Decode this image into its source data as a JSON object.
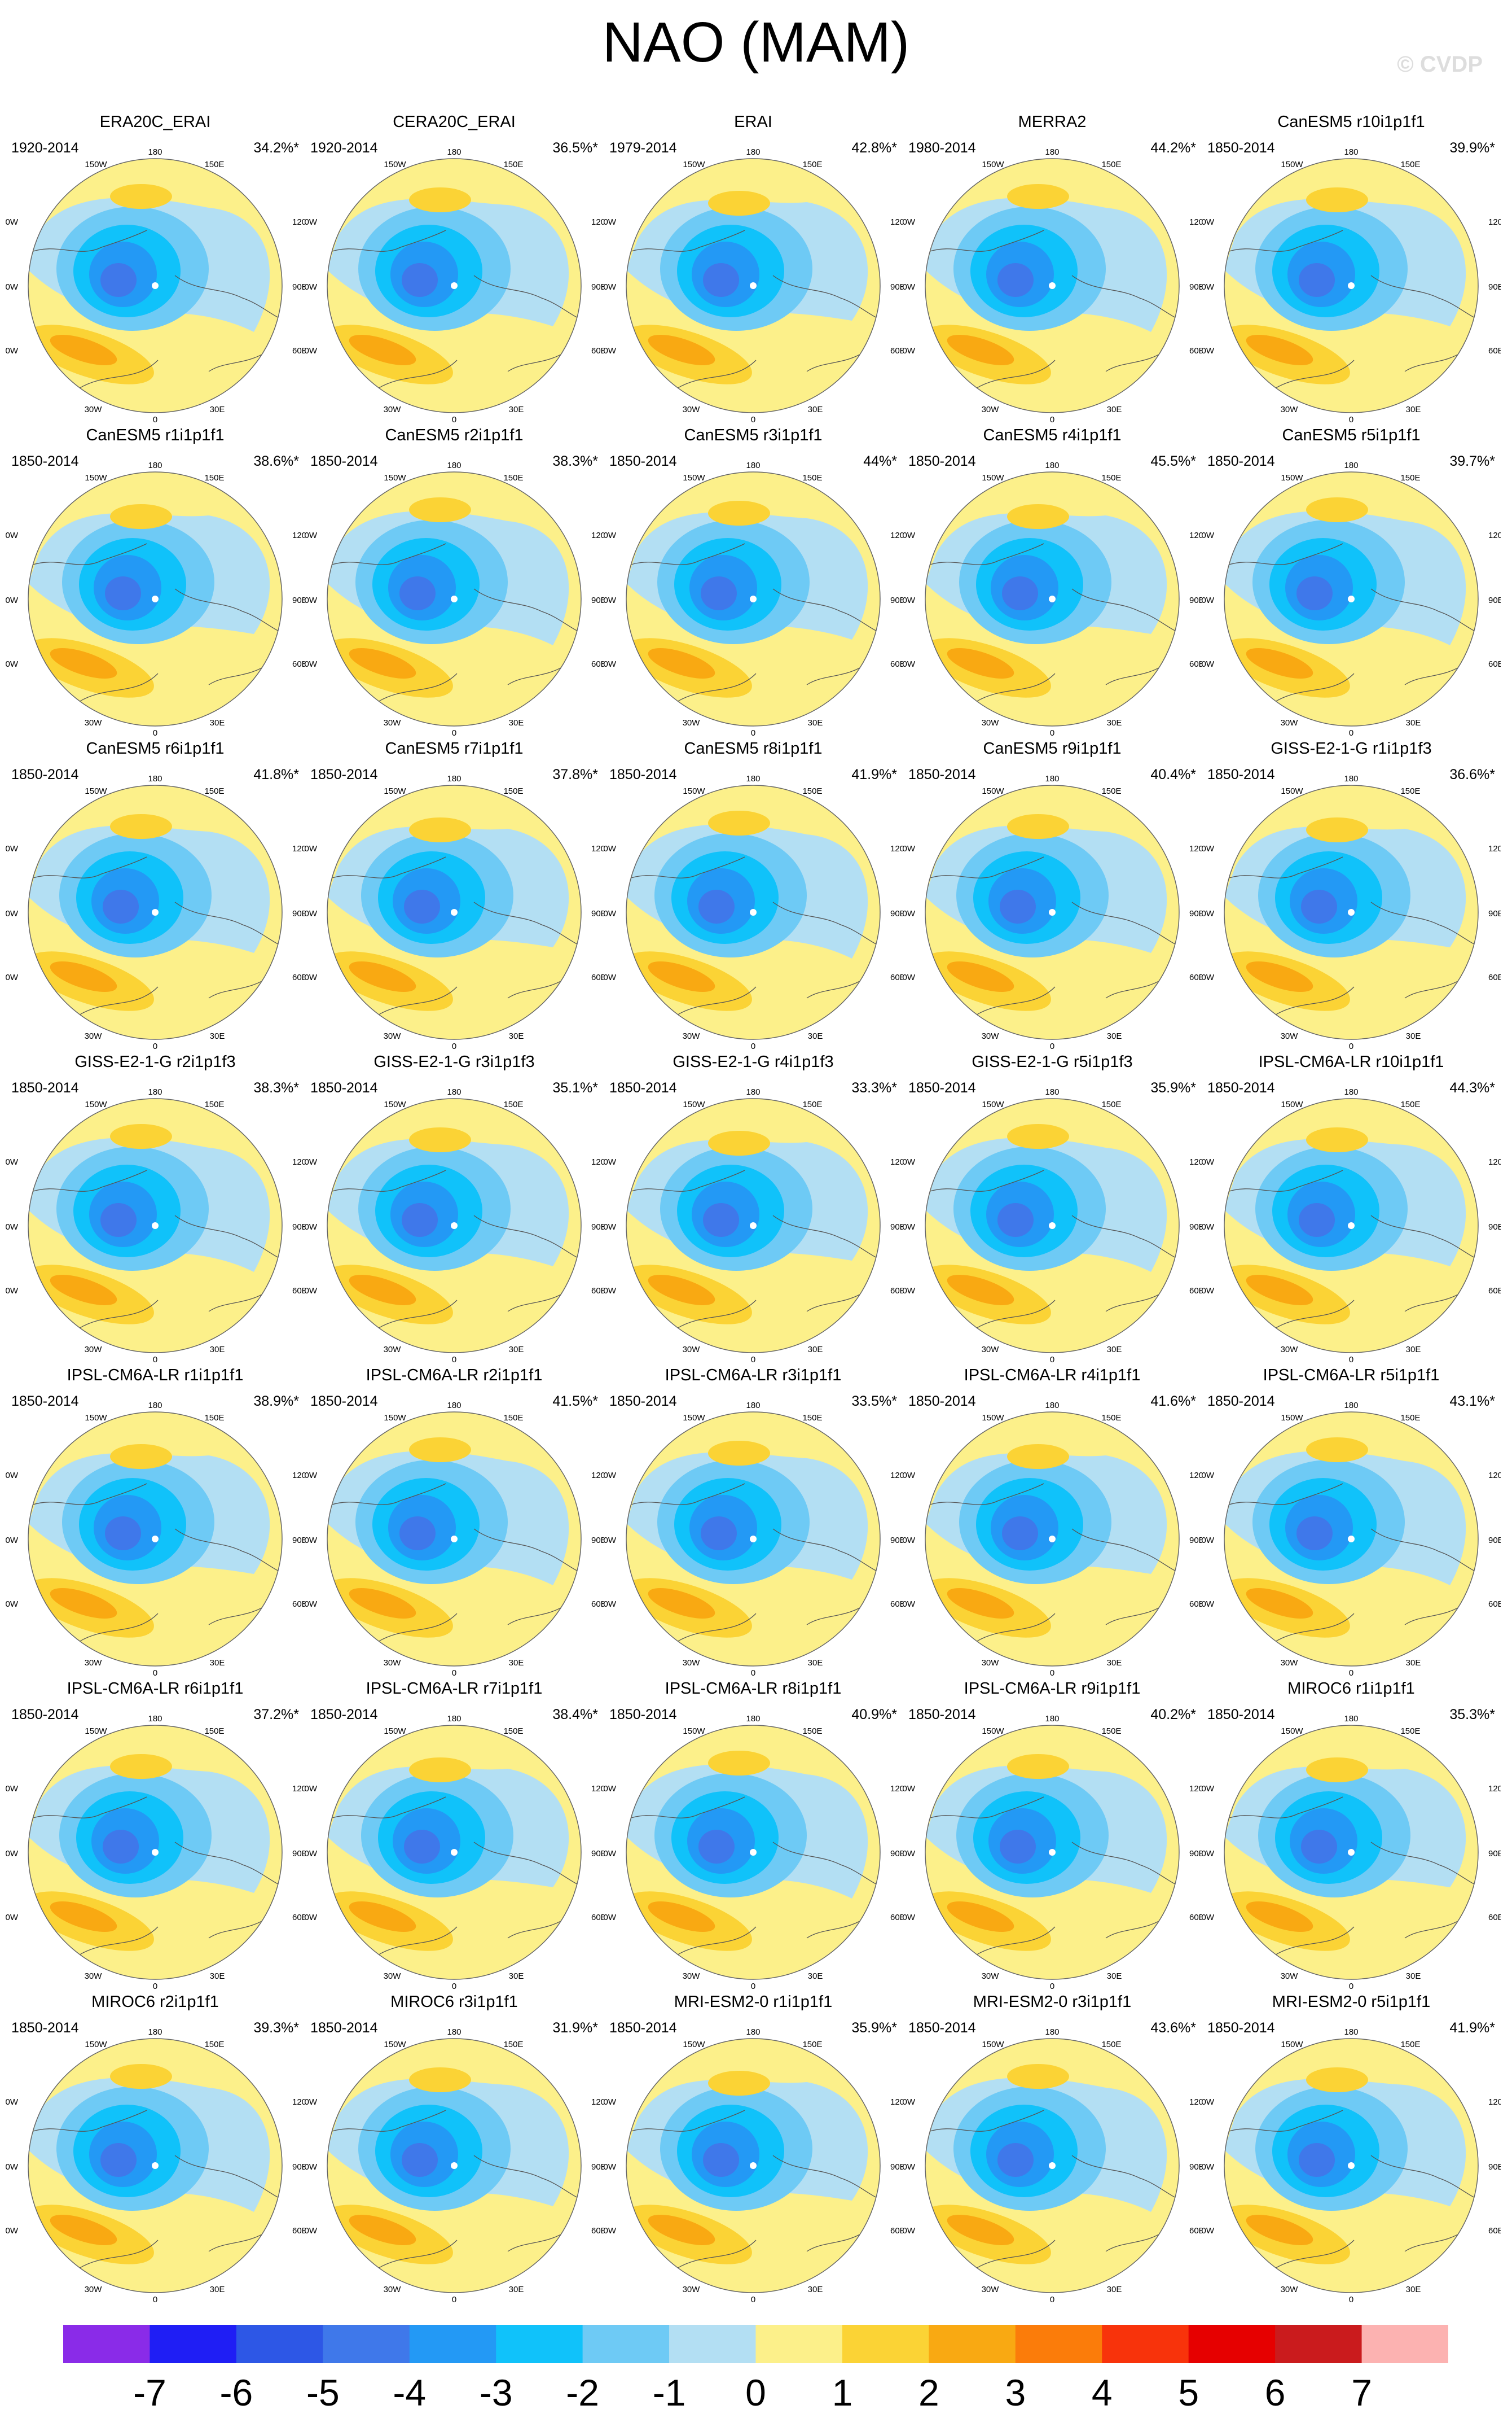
{
  "title": "NAO (MAM)",
  "copyright": "© CVDP",
  "map_labels": {
    "lon_top": "180",
    "lon_top_left": "150W",
    "lon_top_right": "150E",
    "lon_left_upper": "120W",
    "lon_right_upper": "120E",
    "lon_left_mid": "90W",
    "lon_right_mid": "90E",
    "lon_left_lower": "60W",
    "lon_right_lower": "60E",
    "lon_bottom_left": "30W",
    "lon_bottom_right": "30E",
    "lon_bottom": "0"
  },
  "chart_data": {
    "type": "polar-map-panels",
    "variable": "NAO (MAM)",
    "panels": [
      {
        "name": "ERA20C_ERAI",
        "period": "1920-2014",
        "pct": "34.2%*"
      },
      {
        "name": "CERA20C_ERAI",
        "period": "1920-2014",
        "pct": "36.5%*"
      },
      {
        "name": "ERAI",
        "period": "1979-2014",
        "pct": "42.8%*"
      },
      {
        "name": "MERRA2",
        "period": "1980-2014",
        "pct": "44.2%*"
      },
      {
        "name": "CanESM5 r10i1p1f1",
        "period": "1850-2014",
        "pct": "39.9%*"
      },
      {
        "name": "CanESM5 r1i1p1f1",
        "period": "1850-2014",
        "pct": "38.6%*"
      },
      {
        "name": "CanESM5 r2i1p1f1",
        "period": "1850-2014",
        "pct": "38.3%*"
      },
      {
        "name": "CanESM5 r3i1p1f1",
        "period": "1850-2014",
        "pct": "44%*"
      },
      {
        "name": "CanESM5 r4i1p1f1",
        "period": "1850-2014",
        "pct": "45.5%*"
      },
      {
        "name": "CanESM5 r5i1p1f1",
        "period": "1850-2014",
        "pct": "39.7%*"
      },
      {
        "name": "CanESM5 r6i1p1f1",
        "period": "1850-2014",
        "pct": "41.8%*"
      },
      {
        "name": "CanESM5 r7i1p1f1",
        "period": "1850-2014",
        "pct": "37.8%*"
      },
      {
        "name": "CanESM5 r8i1p1f1",
        "period": "1850-2014",
        "pct": "41.9%*"
      },
      {
        "name": "CanESM5 r9i1p1f1",
        "period": "1850-2014",
        "pct": "40.4%*"
      },
      {
        "name": "GISS-E2-1-G r1i1p1f3",
        "period": "1850-2014",
        "pct": "36.6%*"
      },
      {
        "name": "GISS-E2-1-G r2i1p1f3",
        "period": "1850-2014",
        "pct": "38.3%*"
      },
      {
        "name": "GISS-E2-1-G r3i1p1f3",
        "period": "1850-2014",
        "pct": "35.1%*"
      },
      {
        "name": "GISS-E2-1-G r4i1p1f3",
        "period": "1850-2014",
        "pct": "33.3%*"
      },
      {
        "name": "GISS-E2-1-G r5i1p1f3",
        "period": "1850-2014",
        "pct": "35.9%*"
      },
      {
        "name": "IPSL-CM6A-LR r10i1p1f1",
        "period": "1850-2014",
        "pct": "44.3%*"
      },
      {
        "name": "IPSL-CM6A-LR r1i1p1f1",
        "period": "1850-2014",
        "pct": "38.9%*"
      },
      {
        "name": "IPSL-CM6A-LR r2i1p1f1",
        "period": "1850-2014",
        "pct": "41.5%*"
      },
      {
        "name": "IPSL-CM6A-LR r3i1p1f1",
        "period": "1850-2014",
        "pct": "33.5%*"
      },
      {
        "name": "IPSL-CM6A-LR r4i1p1f1",
        "period": "1850-2014",
        "pct": "41.6%*"
      },
      {
        "name": "IPSL-CM6A-LR r5i1p1f1",
        "period": "1850-2014",
        "pct": "43.1%*"
      },
      {
        "name": "IPSL-CM6A-LR r6i1p1f1",
        "period": "1850-2014",
        "pct": "37.2%*"
      },
      {
        "name": "IPSL-CM6A-LR r7i1p1f1",
        "period": "1850-2014",
        "pct": "38.4%*"
      },
      {
        "name": "IPSL-CM6A-LR r8i1p1f1",
        "period": "1850-2014",
        "pct": "40.9%*"
      },
      {
        "name": "IPSL-CM6A-LR r9i1p1f1",
        "period": "1850-2014",
        "pct": "40.2%*"
      },
      {
        "name": "MIROC6 r1i1p1f1",
        "period": "1850-2014",
        "pct": "35.3%*"
      },
      {
        "name": "MIROC6 r2i1p1f1",
        "period": "1850-2014",
        "pct": "39.3%*"
      },
      {
        "name": "MIROC6 r3i1p1f1",
        "period": "1850-2014",
        "pct": "31.9%*"
      },
      {
        "name": "MRI-ESM2-0 r1i1p1f1",
        "period": "1850-2014",
        "pct": "35.9%*"
      },
      {
        "name": "MRI-ESM2-0 r3i1p1f1",
        "period": "1850-2014",
        "pct": "43.6%*"
      },
      {
        "name": "MRI-ESM2-0 r5i1p1f1",
        "period": "1850-2014",
        "pct": "41.9%*"
      }
    ],
    "colorbar": {
      "ticks": [
        "-7",
        "-6",
        "-5",
        "-4",
        "-3",
        "-2",
        "-1",
        "0",
        "1",
        "2",
        "3",
        "4",
        "5",
        "6",
        "7"
      ],
      "colors": [
        "#8a2be8",
        "#1f1ef5",
        "#2d57e6",
        "#3f78ea",
        "#2399f5",
        "#10c2fa",
        "#6ecaf5",
        "#b3dff3",
        "#fcf08a",
        "#fbd335",
        "#f9a912",
        "#fb7c0a",
        "#f8330b",
        "#e60000",
        "#ca1b1d",
        "#fcb2b1"
      ]
    },
    "layout": {
      "columns": 5,
      "rows": 7
    }
  }
}
